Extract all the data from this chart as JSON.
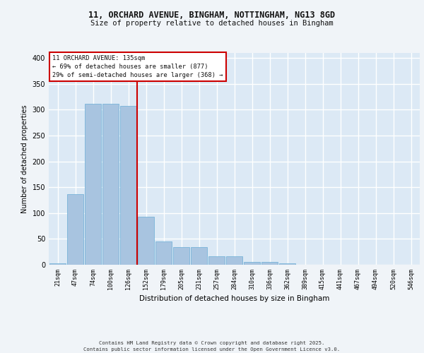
{
  "title1": "11, ORCHARD AVENUE, BINGHAM, NOTTINGHAM, NG13 8GD",
  "title2": "Size of property relative to detached houses in Bingham",
  "xlabel": "Distribution of detached houses by size in Bingham",
  "ylabel": "Number of detached properties",
  "categories": [
    "21sqm",
    "47sqm",
    "74sqm",
    "100sqm",
    "126sqm",
    "152sqm",
    "179sqm",
    "205sqm",
    "231sqm",
    "257sqm",
    "284sqm",
    "310sqm",
    "336sqm",
    "362sqm",
    "389sqm",
    "415sqm",
    "441sqm",
    "467sqm",
    "494sqm",
    "520sqm",
    "546sqm"
  ],
  "values": [
    3,
    137,
    312,
    312,
    308,
    93,
    45,
    34,
    34,
    16,
    16,
    6,
    6,
    3,
    0,
    0,
    0,
    0,
    0,
    0,
    0
  ],
  "bar_color": "#a8c4e0",
  "bar_edge_color": "#6aadd5",
  "background_color": "#dce9f5",
  "fig_background_color": "#f0f4f8",
  "grid_color": "#ffffff",
  "redline_x": 4.5,
  "annotation_title": "11 ORCHARD AVENUE: 135sqm",
  "annotation_line1": "← 69% of detached houses are smaller (877)",
  "annotation_line2": "29% of semi-detached houses are larger (368) →",
  "annotation_box_color": "#ffffff",
  "annotation_border_color": "#cc0000",
  "redline_color": "#cc0000",
  "footer1": "Contains HM Land Registry data © Crown copyright and database right 2025.",
  "footer2": "Contains public sector information licensed under the Open Government Licence v3.0.",
  "ylim": [
    0,
    410
  ],
  "yticks": [
    0,
    50,
    100,
    150,
    200,
    250,
    300,
    350,
    400
  ]
}
